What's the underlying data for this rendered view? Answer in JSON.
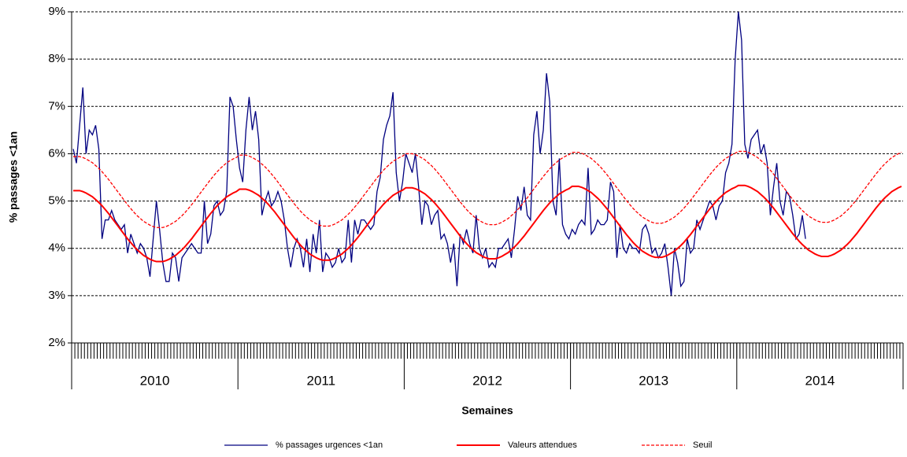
{
  "chart_data": {
    "type": "line",
    "ylabel": "% passages  <1an",
    "xlabel": "Semaines",
    "ylim": [
      2,
      9
    ],
    "yticks": [
      {
        "value": 2,
        "label": "2%"
      },
      {
        "value": 3,
        "label": "3%"
      },
      {
        "value": 4,
        "label": "4%"
      },
      {
        "value": 5,
        "label": "5%"
      },
      {
        "value": 6,
        "label": "6%"
      },
      {
        "value": 7,
        "label": "7%"
      },
      {
        "value": 8,
        "label": "8%"
      },
      {
        "value": 9,
        "label": "9%"
      }
    ],
    "grid": true,
    "legend": "bottom",
    "x_groups": [
      "2010",
      "2011",
      "2012",
      "2013",
      "2014"
    ],
    "categories": [
      null,
      null,
      null,
      null,
      null,
      null,
      null,
      null,
      null,
      null,
      null,
      null,
      null,
      null,
      null,
      null,
      null,
      null,
      null,
      null,
      null,
      null,
      null,
      null,
      null,
      null,
      null,
      null,
      null,
      null,
      null,
      null,
      null,
      null,
      null,
      null,
      null,
      null,
      null,
      null,
      null,
      null,
      null,
      null,
      null,
      null,
      null,
      null,
      null,
      null,
      null,
      null,
      null,
      null,
      null,
      null,
      null,
      null,
      null,
      null,
      null,
      null,
      null,
      null,
      null,
      null,
      null,
      null,
      null,
      null,
      null,
      null,
      null,
      null,
      null,
      null,
      null,
      null,
      null,
      null,
      null,
      null,
      null,
      null,
      null,
      null,
      null,
      null,
      null,
      null,
      null,
      null,
      null,
      null,
      null,
      null,
      null,
      null,
      null,
      null,
      null,
      null,
      null,
      null,
      null,
      null,
      null,
      null,
      null,
      null,
      null,
      null,
      null,
      null,
      null,
      null,
      null,
      null,
      null,
      null,
      null,
      null,
      null,
      null,
      null,
      null,
      null,
      null,
      null,
      null,
      null,
      null,
      null,
      null,
      null,
      null,
      null,
      null,
      null,
      null,
      null,
      null,
      null,
      null,
      null,
      null,
      null,
      null,
      null,
      null,
      null,
      null,
      null,
      null,
      null,
      null,
      null,
      null,
      null,
      null,
      null,
      null,
      null,
      null,
      null,
      null,
      null,
      null,
      null,
      null,
      null,
      null,
      null,
      null,
      null,
      null,
      null,
      null,
      null,
      null,
      null,
      null,
      null,
      null,
      null,
      null,
      null,
      null,
      null,
      null,
      null,
      null,
      null,
      null,
      null,
      null,
      null,
      null,
      null,
      null,
      null,
      null,
      null,
      null,
      null,
      null,
      null,
      null,
      null,
      null,
      null,
      null,
      null,
      null,
      null,
      null,
      null,
      null,
      null,
      null,
      null,
      null,
      null,
      null,
      null,
      null,
      null,
      null,
      null,
      null,
      null,
      null,
      null,
      null,
      null,
      null,
      null,
      null,
      null,
      null,
      null,
      null,
      null,
      null,
      null,
      null,
      null,
      null,
      null,
      null,
      null,
      null,
      null,
      null,
      null,
      null,
      null,
      null,
      null,
      null
    ],
    "series": [
      {
        "name": "% passages urgences <1an",
        "color": "#000080",
        "dash": false,
        "values": [
          6.1,
          5.8,
          6.6,
          7.4,
          6.0,
          6.5,
          6.4,
          6.6,
          6.1,
          4.2,
          4.6,
          4.6,
          4.8,
          4.6,
          4.5,
          4.4,
          4.5,
          3.9,
          4.3,
          4.1,
          3.9,
          4.1,
          4.0,
          3.8,
          3.4,
          4.2,
          5.0,
          4.4,
          3.7,
          3.3,
          3.3,
          3.9,
          3.8,
          3.3,
          3.8,
          3.9,
          4.0,
          4.1,
          4.0,
          3.9,
          3.9,
          5.0,
          4.1,
          4.3,
          4.9,
          5.0,
          4.7,
          4.8,
          5.2,
          7.2,
          7.0,
          6.3,
          5.7,
          5.4,
          6.5,
          7.2,
          6.5,
          6.9,
          6.3,
          4.7,
          5.0,
          5.2,
          4.9,
          5.0,
          5.2,
          5.0,
          4.6,
          4.0,
          3.6,
          4.0,
          4.2,
          4.0,
          3.6,
          4.2,
          3.5,
          4.3,
          3.9,
          4.6,
          3.5,
          3.9,
          3.8,
          3.6,
          3.7,
          4.0,
          3.7,
          3.8,
          4.6,
          3.7,
          4.6,
          4.3,
          4.6,
          4.6,
          4.5,
          4.4,
          4.5,
          5.2,
          5.5,
          6.3,
          6.6,
          6.8,
          7.3,
          5.6,
          5.0,
          5.4,
          6.0,
          5.8,
          5.6,
          6.0,
          5.3,
          4.5,
          5.0,
          4.9,
          4.5,
          4.7,
          4.8,
          4.2,
          4.3,
          4.1,
          3.7,
          4.1,
          3.2,
          4.3,
          4.1,
          4.4,
          4.1,
          3.9,
          4.7,
          4.0,
          3.8,
          4.0,
          3.6,
          3.7,
          3.6,
          4.0,
          4.0,
          4.1,
          4.2,
          3.8,
          4.4,
          5.1,
          4.8,
          5.3,
          4.7,
          4.6,
          6.4,
          6.9,
          6.0,
          6.5,
          7.7,
          7.1,
          5.0,
          4.7,
          5.9,
          4.5,
          4.3,
          4.2,
          4.4,
          4.3,
          4.5,
          4.6,
          4.5,
          5.7,
          4.3,
          4.4,
          4.6,
          4.5,
          4.5,
          4.6,
          5.4,
          5.2,
          3.8,
          4.5,
          4.0,
          3.9,
          4.1,
          4.0,
          4.0,
          3.9,
          4.4,
          4.5,
          4.3,
          3.9,
          4.0,
          3.8,
          3.9,
          4.1,
          3.6,
          3.0,
          4.0,
          3.7,
          3.2,
          3.3,
          4.2,
          3.9,
          4.0,
          4.6,
          4.4,
          4.6,
          4.8,
          5.0,
          4.9,
          4.6,
          4.9,
          5.0,
          5.6,
          5.8,
          6.2,
          8.0,
          9.0,
          8.4,
          6.2,
          5.9,
          6.3,
          6.4,
          6.5,
          6.0,
          6.2,
          5.8,
          4.7,
          5.3,
          5.8,
          5.0,
          4.7,
          5.2,
          5.1,
          4.7,
          4.2,
          4.3,
          4.7,
          4.2,
          null,
          null,
          null,
          null,
          null,
          null,
          null,
          null,
          null,
          null,
          null,
          null,
          null,
          null,
          null,
          null,
          null,
          null,
          null,
          null,
          null,
          null,
          null,
          null,
          null,
          null,
          null,
          null,
          null,
          null
        ]
      },
      {
        "name": "Valeurs attendues",
        "color": "#ff0000",
        "dash": false,
        "values": [
          5.22,
          5.22,
          5.22,
          5.2,
          5.17,
          5.13,
          5.09,
          5.03,
          4.97,
          4.9,
          4.82,
          4.74,
          4.65,
          4.56,
          4.47,
          4.38,
          4.29,
          4.2,
          4.12,
          4.04,
          3.97,
          3.91,
          3.85,
          3.81,
          3.77,
          3.74,
          3.72,
          3.72,
          3.72,
          3.74,
          3.77,
          3.81,
          3.85,
          3.91,
          3.97,
          4.04,
          4.12,
          4.2,
          4.29,
          4.38,
          4.47,
          4.56,
          4.65,
          4.74,
          4.82,
          4.9,
          4.97,
          5.03,
          5.09,
          5.13,
          5.17,
          5.2,
          5.25,
          5.25,
          5.25,
          5.23,
          5.2,
          5.16,
          5.12,
          5.06,
          5.0,
          4.93,
          4.85,
          4.77,
          4.68,
          4.59,
          4.5,
          4.41,
          4.32,
          4.23,
          4.15,
          4.07,
          4.0,
          3.94,
          3.88,
          3.84,
          3.8,
          3.77,
          3.75,
          3.75,
          3.75,
          3.77,
          3.8,
          3.84,
          3.88,
          3.94,
          4.0,
          4.07,
          4.15,
          4.23,
          4.32,
          4.41,
          4.5,
          4.59,
          4.68,
          4.77,
          4.85,
          4.93,
          5.0,
          5.06,
          5.12,
          5.16,
          5.2,
          5.23,
          5.28,
          5.28,
          5.28,
          5.26,
          5.23,
          5.19,
          5.15,
          5.09,
          5.03,
          4.96,
          4.88,
          4.8,
          4.71,
          4.62,
          4.53,
          4.44,
          4.35,
          4.26,
          4.18,
          4.1,
          4.03,
          3.97,
          3.91,
          3.87,
          3.83,
          3.8,
          3.78,
          3.78,
          3.78,
          3.8,
          3.83,
          3.87,
          3.91,
          3.97,
          4.03,
          4.1,
          4.18,
          4.26,
          4.35,
          4.44,
          4.53,
          4.62,
          4.71,
          4.8,
          4.88,
          4.96,
          5.03,
          5.09,
          5.15,
          5.19,
          5.23,
          5.26,
          5.31,
          5.31,
          5.31,
          5.29,
          5.26,
          5.22,
          5.18,
          5.12,
          5.06,
          4.99,
          4.91,
          4.83,
          4.74,
          4.65,
          4.56,
          4.47,
          4.38,
          4.29,
          4.21,
          4.13,
          4.06,
          4.0,
          3.94,
          3.9,
          3.86,
          3.83,
          3.81,
          3.81,
          3.81,
          3.83,
          3.86,
          3.9,
          3.94,
          4.0,
          4.06,
          4.13,
          4.21,
          4.29,
          4.38,
          4.47,
          4.56,
          4.65,
          4.74,
          4.83,
          4.91,
          4.99,
          5.06,
          5.12,
          5.18,
          5.22,
          5.26,
          5.29,
          5.33,
          5.33,
          5.33,
          5.31,
          5.28,
          5.24,
          5.2,
          5.14,
          5.08,
          5.01,
          4.93,
          4.85,
          4.76,
          4.67,
          4.58,
          4.49,
          4.4,
          4.31,
          4.23,
          4.15,
          4.08,
          4.02,
          3.96,
          3.92,
          3.88,
          3.85,
          3.83,
          3.83,
          3.83,
          3.85,
          3.88,
          3.92,
          3.96,
          4.02,
          4.08,
          4.15,
          4.23,
          4.31,
          4.4,
          4.49,
          4.58,
          4.67,
          4.76,
          4.85,
          4.93,
          5.01,
          5.08,
          5.14,
          5.2,
          5.24,
          5.28,
          5.31
        ]
      },
      {
        "name": "Seuil",
        "color": "#ff0000",
        "dash": true,
        "values": [
          5.94,
          5.94,
          5.94,
          5.92,
          5.89,
          5.85,
          5.81,
          5.75,
          5.69,
          5.62,
          5.54,
          5.46,
          5.37,
          5.28,
          5.19,
          5.1,
          5.01,
          4.92,
          4.84,
          4.76,
          4.69,
          4.63,
          4.57,
          4.53,
          4.49,
          4.46,
          4.44,
          4.44,
          4.44,
          4.46,
          4.49,
          4.53,
          4.57,
          4.63,
          4.69,
          4.76,
          4.84,
          4.92,
          5.01,
          5.1,
          5.19,
          5.28,
          5.37,
          5.46,
          5.54,
          5.62,
          5.69,
          5.75,
          5.81,
          5.85,
          5.89,
          5.92,
          5.97,
          5.97,
          5.97,
          5.95,
          5.92,
          5.88,
          5.84,
          5.78,
          5.72,
          5.65,
          5.57,
          5.49,
          5.4,
          5.31,
          5.22,
          5.13,
          5.04,
          4.95,
          4.87,
          4.79,
          4.72,
          4.66,
          4.6,
          4.56,
          4.52,
          4.49,
          4.47,
          4.47,
          4.47,
          4.49,
          4.52,
          4.56,
          4.6,
          4.66,
          4.72,
          4.79,
          4.87,
          4.95,
          5.04,
          5.13,
          5.22,
          5.31,
          5.4,
          5.49,
          5.57,
          5.65,
          5.72,
          5.78,
          5.84,
          5.88,
          5.92,
          5.95,
          6.0,
          6.0,
          6.0,
          5.98,
          5.95,
          5.91,
          5.87,
          5.81,
          5.75,
          5.68,
          5.6,
          5.52,
          5.43,
          5.34,
          5.25,
          5.16,
          5.07,
          4.98,
          4.9,
          4.82,
          4.75,
          4.69,
          4.63,
          4.59,
          4.55,
          4.52,
          4.5,
          4.5,
          4.5,
          4.52,
          4.55,
          4.59,
          4.63,
          4.69,
          4.75,
          4.82,
          4.9,
          4.98,
          5.07,
          5.16,
          5.25,
          5.34,
          5.43,
          5.52,
          5.6,
          5.68,
          5.75,
          5.81,
          5.87,
          5.91,
          5.95,
          5.98,
          6.03,
          6.03,
          6.03,
          6.01,
          5.98,
          5.94,
          5.9,
          5.84,
          5.78,
          5.71,
          5.63,
          5.55,
          5.46,
          5.37,
          5.28,
          5.19,
          5.1,
          5.01,
          4.93,
          4.85,
          4.78,
          4.72,
          4.66,
          4.62,
          4.58,
          4.55,
          4.53,
          4.53,
          4.53,
          4.55,
          4.58,
          4.62,
          4.66,
          4.72,
          4.78,
          4.85,
          4.93,
          5.01,
          5.1,
          5.19,
          5.28,
          5.37,
          5.46,
          5.55,
          5.63,
          5.71,
          5.78,
          5.84,
          5.9,
          5.94,
          5.98,
          6.01,
          6.05,
          6.05,
          6.05,
          6.03,
          6.0,
          5.96,
          5.92,
          5.86,
          5.8,
          5.73,
          5.65,
          5.57,
          5.48,
          5.39,
          5.3,
          5.21,
          5.12,
          5.03,
          4.95,
          4.87,
          4.8,
          4.74,
          4.68,
          4.64,
          4.6,
          4.57,
          4.55,
          4.55,
          4.55,
          4.57,
          4.6,
          4.64,
          4.68,
          4.74,
          4.8,
          4.87,
          4.95,
          5.03,
          5.12,
          5.21,
          5.3,
          5.39,
          5.48,
          5.57,
          5.65,
          5.73,
          5.8,
          5.86,
          5.92,
          5.96,
          6.0,
          6.03
        ]
      }
    ]
  }
}
